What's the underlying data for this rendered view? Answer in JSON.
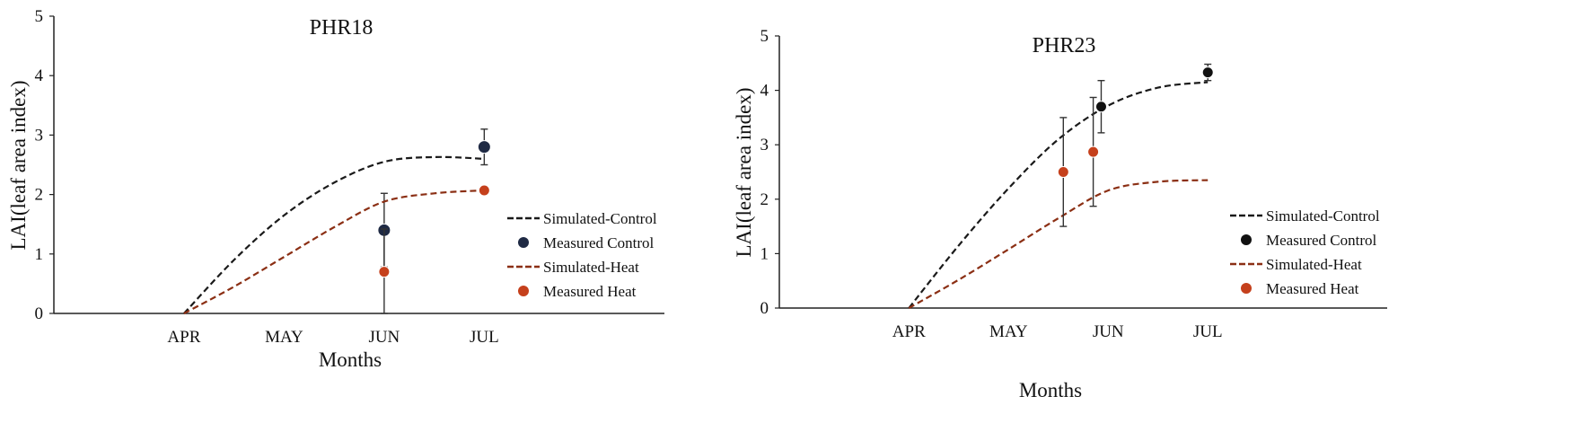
{
  "chart_data": [
    {
      "type": "line",
      "title": "PHR18",
      "xlabel": "Months",
      "ylabel": "LAI(leaf area index)",
      "categories": [
        "APR",
        "MAY",
        "JUN",
        "JUL"
      ],
      "x_range": [
        -1.3,
        4.8
      ],
      "ylim": [
        0,
        5
      ],
      "yticks": [
        0,
        1,
        2,
        3,
        4,
        5
      ],
      "grid": false,
      "legend_position": "right",
      "series": [
        {
          "name": "Simulated-Control",
          "kind": "dashed-line",
          "color": "#1a1a1a",
          "points": [
            [
              0,
              0
            ],
            [
              0.5,
              0.9
            ],
            [
              1,
              1.65
            ],
            [
              1.5,
              2.2
            ],
            [
              2,
              2.55
            ],
            [
              2.5,
              2.63
            ],
            [
              3,
              2.6
            ]
          ]
        },
        {
          "name": "Measured Control",
          "kind": "marker",
          "color": "#1f2a44",
          "points": [
            [
              2,
              1.4,
              0.62
            ],
            [
              3,
              2.8,
              0.3
            ]
          ]
        },
        {
          "name": "Simulated-Heat",
          "kind": "dashed-line",
          "color": "#8b2f14",
          "points": [
            [
              0,
              0
            ],
            [
              0.5,
              0.45
            ],
            [
              1,
              0.95
            ],
            [
              1.5,
              1.45
            ],
            [
              2,
              1.88
            ],
            [
              2.5,
              2.02
            ],
            [
              3,
              2.07
            ]
          ]
        },
        {
          "name": "Measured Heat",
          "kind": "marker",
          "color": "#c5401c",
          "points": [
            [
              2,
              0.7,
              0.72
            ],
            [
              3,
              2.07,
              0
            ]
          ]
        }
      ]
    },
    {
      "type": "line",
      "title": "PHR23",
      "xlabel": "Months",
      "ylabel": "LAI(leaf area index)",
      "categories": [
        "APR",
        "MAY",
        "JUN",
        "JUL"
      ],
      "x_range": [
        -1.3,
        4.8
      ],
      "ylim": [
        0,
        5
      ],
      "yticks": [
        0,
        1,
        2,
        3,
        4,
        5
      ],
      "grid": false,
      "legend_position": "right",
      "series": [
        {
          "name": "Simulated-Control",
          "kind": "dashed-line",
          "color": "#1a1a1a",
          "points": [
            [
              0,
              0
            ],
            [
              0.5,
              1.15
            ],
            [
              1,
              2.2
            ],
            [
              1.5,
              3.1
            ],
            [
              2,
              3.72
            ],
            [
              2.5,
              4.05
            ],
            [
              3,
              4.15
            ]
          ]
        },
        {
          "name": "Measured Control",
          "kind": "marker",
          "color": "#111111",
          "points": [
            [
              1.93,
              3.7,
              0.48
            ],
            [
              3,
              4.33,
              0.15
            ]
          ]
        },
        {
          "name": "Simulated-Heat",
          "kind": "dashed-line",
          "color": "#8b2f14",
          "points": [
            [
              0,
              0
            ],
            [
              0.5,
              0.52
            ],
            [
              1,
              1.08
            ],
            [
              1.5,
              1.65
            ],
            [
              2,
              2.16
            ],
            [
              2.5,
              2.32
            ],
            [
              3,
              2.35
            ]
          ]
        },
        {
          "name": "Measured Heat",
          "kind": "marker",
          "color": "#c5401c",
          "points": [
            [
              1.55,
              2.5,
              1.0
            ],
            [
              1.85,
              2.87,
              1.0
            ]
          ]
        }
      ]
    }
  ]
}
